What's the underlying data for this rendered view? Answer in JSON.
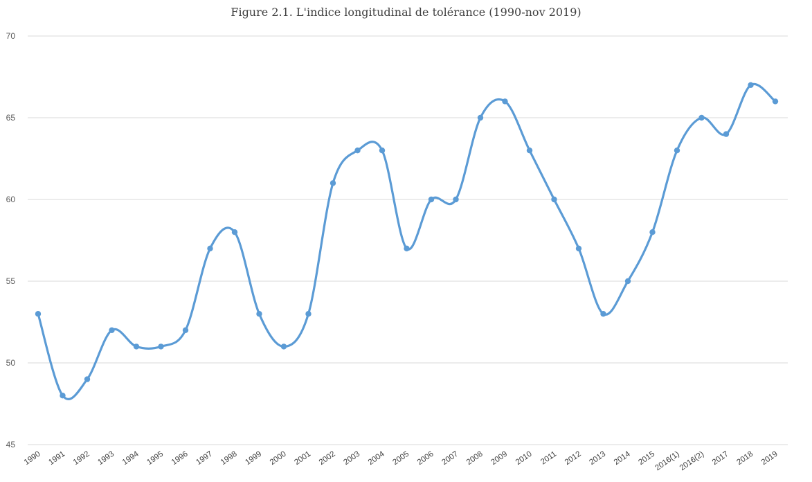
{
  "chart_data": {
    "type": "line",
    "title": "Figure 2.1. L'indice longitudinal de tolérance (1990-nov 2019)",
    "xlabel": "",
    "ylabel": "",
    "ylim": [
      45,
      70
    ],
    "yticks": [
      45,
      50,
      55,
      60,
      65,
      70
    ],
    "grid": true,
    "legend": "none",
    "smooth": true,
    "categories": [
      "1990",
      "1991",
      "1992",
      "1993",
      "1994",
      "1995",
      "1996",
      "1997",
      "1998",
      "1999",
      "2000",
      "2001",
      "2002",
      "2003",
      "2004",
      "2005",
      "2006",
      "2007",
      "2008",
      "2009",
      "2010",
      "2011",
      "2012",
      "2013",
      "2014",
      "2015",
      "2016(1)",
      "2016(2)",
      "2017",
      "2018",
      "2019"
    ],
    "series": [
      {
        "color": "#5b9bd5",
        "values": [
          53,
          48,
          49,
          52,
          51,
          51,
          52,
          57,
          58,
          53,
          51,
          53,
          61,
          63,
          63,
          57,
          60,
          60,
          65,
          66,
          63,
          60,
          57,
          53,
          55,
          58,
          63,
          65,
          64,
          67,
          66
        ]
      }
    ]
  }
}
